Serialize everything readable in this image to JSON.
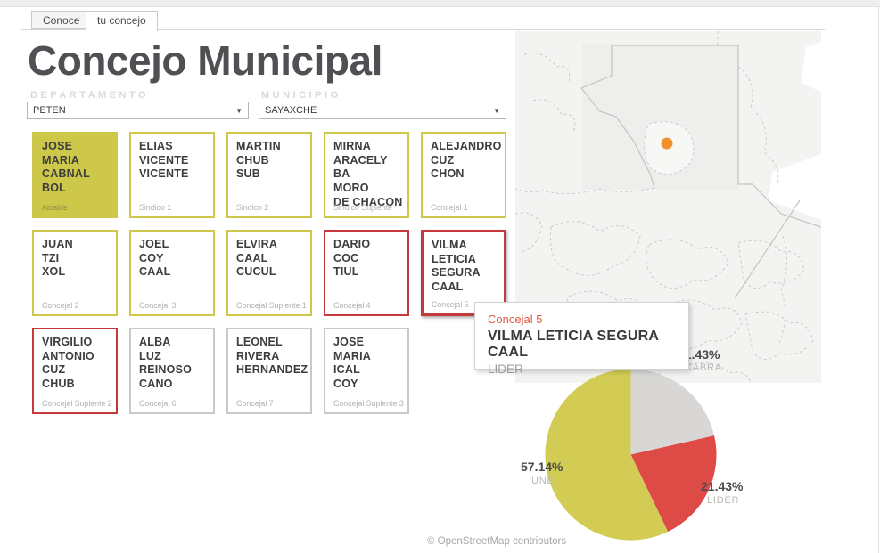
{
  "page": {
    "tabs": [
      {
        "label": "Conoce",
        "active": false
      },
      {
        "label": "tu concejo",
        "active": true
      }
    ],
    "title": "Concejo Municipal",
    "filters": {
      "departamento": {
        "label": "DEPARTAMENTO",
        "value": "PETEN"
      },
      "municipio": {
        "label": "MUNICIPIO",
        "value": "SAYAXCHE"
      }
    },
    "parties": {
      "UNE": "#cdc84a",
      "LIDER": "#c5383c",
      "CABRA": "#c9c9c9"
    },
    "council": {
      "members": [
        {
          "lines": "JOSE\nMARIA\nCABNAL\nBOL",
          "role": "Alcalde",
          "party": "UNE",
          "filled": true
        },
        {
          "lines": "ELIAS\nVICENTE\nVICENTE",
          "role": "Sindico 1",
          "party": "UNE"
        },
        {
          "lines": "MARTIN\nCHUB\nSUB",
          "role": "Sindico 2",
          "party": "UNE"
        },
        {
          "lines": "MIRNA\nARACELY\nBA\nMORO\nDE CHACON",
          "role": "Sindico Suplente",
          "party": "UNE"
        },
        {
          "lines": "ALEJANDRO\nCUZ\nCHON",
          "role": "Concejal 1",
          "party": "UNE"
        },
        {
          "lines": "JUAN\nTZI\nXOL",
          "role": "Concejal 2",
          "party": "UNE"
        },
        {
          "lines": "JOEL\nCOY\nCAAL",
          "role": "Concejal 3",
          "party": "UNE"
        },
        {
          "lines": "ELVIRA\nCAAL\nCUCUL",
          "role": "Concejal Suplente 1",
          "party": "UNE"
        },
        {
          "lines": "DARIO\nCOC\nTIUL",
          "role": "Concejal 4",
          "party": "LIDER"
        },
        {
          "lines": "VILMA\nLETICIA\nSEGURA\nCAAL",
          "role": "Concejal 5",
          "party": "LIDER",
          "highlighted": true
        },
        {
          "lines": "VIRGILIO\nANTONIO\nCUZ\nCHUB",
          "role": "Concejal Suplente 2",
          "party": "LIDER"
        },
        {
          "lines": "ALBA\nLUZ\nREINOSO\nCANO",
          "role": "Concejal 6",
          "party": "CABRA"
        },
        {
          "lines": "LEONEL\nRIVERA\nHERNANDEZ",
          "role": "Concejal 7",
          "party": "CABRA"
        },
        {
          "lines": "JOSE\nMARIA\nICAL\nCOY",
          "role": "Concejal Suplente 3",
          "party": "CABRA"
        }
      ]
    },
    "tooltip": {
      "role": "Concejal 5",
      "name": "VILMA LETICIA SEGURA CAAL",
      "party": "LIDER"
    },
    "map": {
      "marker_color": "#f0912d",
      "attribution": "© OpenStreetMap contributors"
    }
  },
  "chart_data": {
    "type": "pie",
    "title": "",
    "legend_position": "outside-labels",
    "start_angle_deg": 0,
    "direction": "clockwise",
    "slices": [
      {
        "label": "CABRA",
        "value": 21.43,
        "pct_label": "21.43%",
        "color": "#d8d7d5"
      },
      {
        "label": "LIDER",
        "value": 21.43,
        "pct_label": "21.43%",
        "color": "#de4b47"
      },
      {
        "label": "UNE",
        "value": 57.14,
        "pct_label": "57.14%",
        "color": "#d2cc55"
      }
    ]
  }
}
